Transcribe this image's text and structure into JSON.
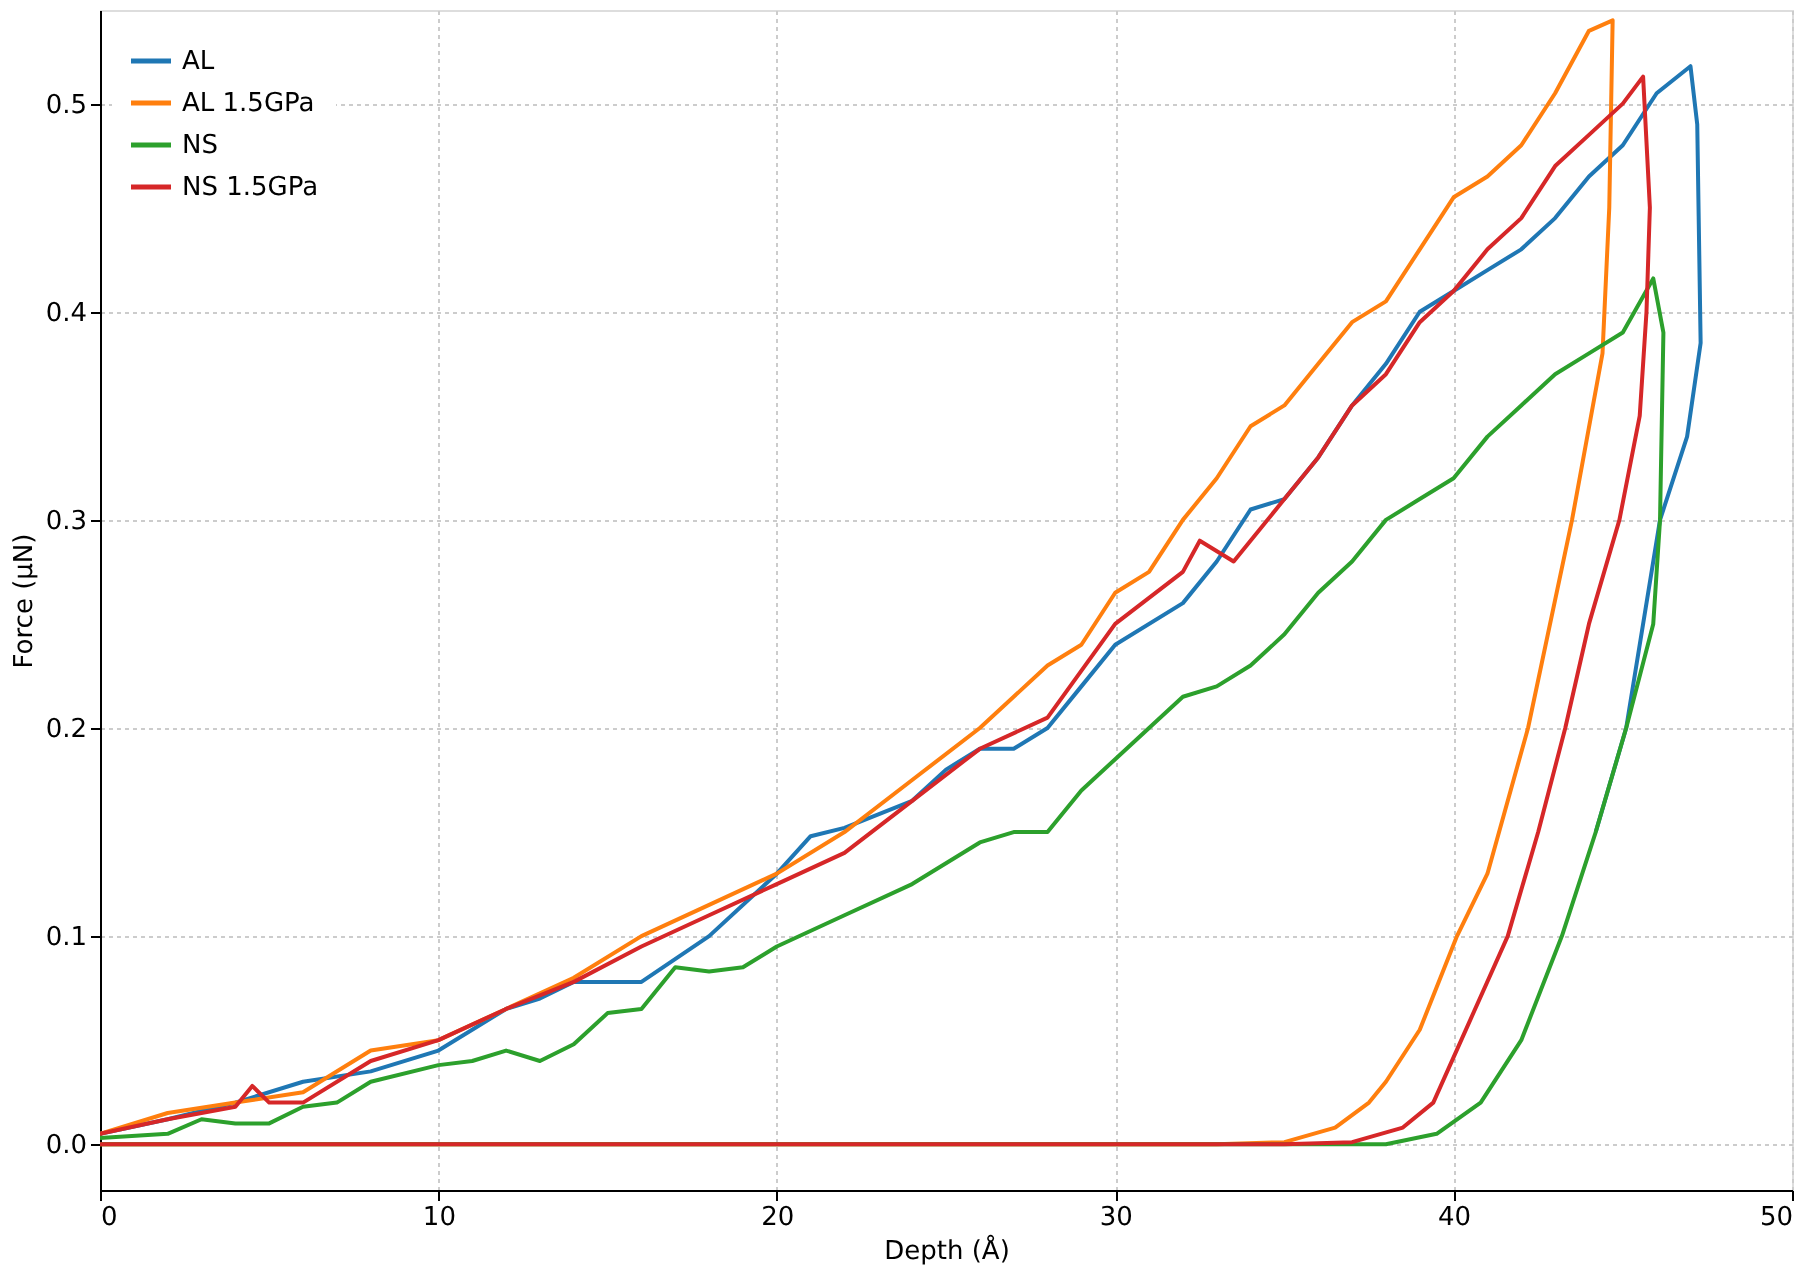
{
  "chart_data": {
    "type": "line",
    "xlabel": "Depth (Å)",
    "ylabel": "Force (μN)",
    "xlim": [
      0,
      50
    ],
    "ylim": [
      -0.022,
      0.545
    ],
    "xticks": [
      0,
      10,
      20,
      30,
      40,
      50
    ],
    "yticks": [
      {
        "value": 0,
        "label": "0.0"
      },
      {
        "value": 0.1,
        "label": "0.1"
      },
      {
        "value": 0.2,
        "label": "0.2"
      },
      {
        "value": 0.3,
        "label": "0.3"
      },
      {
        "value": 0.4,
        "label": "0.4"
      },
      {
        "value": 0.5,
        "label": "0.5"
      }
    ],
    "grid": true,
    "legend": "top left",
    "line_style": "solid",
    "marker": "none",
    "series": [
      {
        "name": "AL",
        "color": "#1f77b4",
        "x": [
          0,
          2,
          4,
          6,
          8,
          10,
          12,
          13,
          14,
          16,
          18,
          20,
          21,
          22,
          24,
          25,
          26,
          27,
          28,
          29,
          30,
          32,
          33,
          34,
          35,
          36,
          37,
          38,
          39,
          40,
          41,
          42,
          43,
          44,
          45,
          46,
          47,
          47.2,
          47.3,
          46.9,
          46.1,
          45.1,
          44.2
        ],
        "values": [
          0.005,
          0.012,
          0.02,
          0.03,
          0.035,
          0.045,
          0.065,
          0.07,
          0.078,
          0.078,
          0.1,
          0.13,
          0.148,
          0.152,
          0.165,
          0.18,
          0.19,
          0.19,
          0.2,
          0.22,
          0.24,
          0.26,
          0.28,
          0.305,
          0.31,
          0.33,
          0.355,
          0.375,
          0.4,
          0.41,
          0.42,
          0.43,
          0.445,
          0.465,
          0.48,
          0.505,
          0.518,
          0.49,
          0.385,
          0.34,
          0.3,
          0.2,
          0.15
        ]
      },
      {
        "name": "AL 1.5GPa",
        "color": "#ff7f0e",
        "x": [
          0,
          2,
          4,
          6,
          8,
          10,
          12,
          14,
          16,
          18,
          20,
          22,
          24,
          26,
          27,
          28,
          29,
          30,
          31,
          32,
          33,
          34,
          35,
          36,
          37,
          38,
          39,
          40,
          41,
          42,
          43,
          44,
          44.7,
          44.6,
          44.4,
          43.5,
          42.2,
          41,
          40.1,
          39,
          38,
          37.5,
          36.5,
          35,
          33,
          0
        ],
        "values": [
          0.005,
          0.015,
          0.02,
          0.025,
          0.045,
          0.05,
          0.065,
          0.08,
          0.1,
          0.115,
          0.13,
          0.15,
          0.175,
          0.2,
          0.215,
          0.23,
          0.24,
          0.265,
          0.275,
          0.3,
          0.32,
          0.345,
          0.355,
          0.375,
          0.395,
          0.405,
          0.43,
          0.455,
          0.465,
          0.48,
          0.505,
          0.535,
          0.54,
          0.45,
          0.38,
          0.3,
          0.2,
          0.13,
          0.1,
          0.055,
          0.03,
          0.02,
          0.008,
          0.001,
          0,
          0
        ]
      },
      {
        "name": "NS",
        "color": "#2ca02c",
        "x": [
          0,
          2,
          3,
          4,
          5,
          6,
          7,
          8,
          10,
          11,
          12,
          13,
          14,
          15,
          16,
          17,
          18,
          19,
          20,
          22,
          24,
          26,
          27,
          28,
          29,
          30,
          31,
          32,
          33,
          34,
          35,
          36,
          37,
          38,
          39,
          40,
          41,
          42,
          43,
          44,
          45,
          45.9,
          46.2,
          46.1,
          45.9,
          45.1,
          44.2,
          43.2,
          42,
          40.8,
          39.5,
          38,
          0
        ],
        "values": [
          0.003,
          0.005,
          0.012,
          0.01,
          0.01,
          0.018,
          0.02,
          0.03,
          0.038,
          0.04,
          0.045,
          0.04,
          0.048,
          0.063,
          0.065,
          0.085,
          0.083,
          0.085,
          0.095,
          0.11,
          0.125,
          0.145,
          0.15,
          0.15,
          0.17,
          0.185,
          0.2,
          0.215,
          0.22,
          0.23,
          0.245,
          0.265,
          0.28,
          0.3,
          0.31,
          0.32,
          0.34,
          0.355,
          0.37,
          0.38,
          0.39,
          0.416,
          0.39,
          0.3,
          0.25,
          0.2,
          0.15,
          0.1,
          0.05,
          0.02,
          0.005,
          0,
          0
        ]
      },
      {
        "name": "NS 1.5GPa",
        "color": "#d62728",
        "x": [
          0,
          2,
          4,
          4.5,
          5,
          6,
          8,
          10,
          12,
          14,
          16,
          18,
          20,
          22,
          24,
          26,
          28,
          30,
          32,
          32.5,
          33.5,
          35,
          36,
          37,
          38,
          39,
          40,
          41,
          42,
          43,
          44,
          45,
          45.6,
          45.8,
          45.7,
          45.5,
          44.9,
          44,
          43.3,
          42.5,
          41.6,
          40.5,
          39.4,
          38.5,
          37,
          35,
          0
        ],
        "values": [
          0.005,
          0.012,
          0.018,
          0.028,
          0.02,
          0.02,
          0.04,
          0.05,
          0.065,
          0.078,
          0.095,
          0.11,
          0.125,
          0.14,
          0.165,
          0.19,
          0.205,
          0.25,
          0.275,
          0.29,
          0.28,
          0.31,
          0.33,
          0.355,
          0.37,
          0.395,
          0.41,
          0.43,
          0.445,
          0.47,
          0.485,
          0.5,
          0.513,
          0.45,
          0.4,
          0.35,
          0.3,
          0.25,
          0.2,
          0.15,
          0.1,
          0.06,
          0.02,
          0.008,
          0.001,
          0,
          0
        ]
      }
    ]
  }
}
